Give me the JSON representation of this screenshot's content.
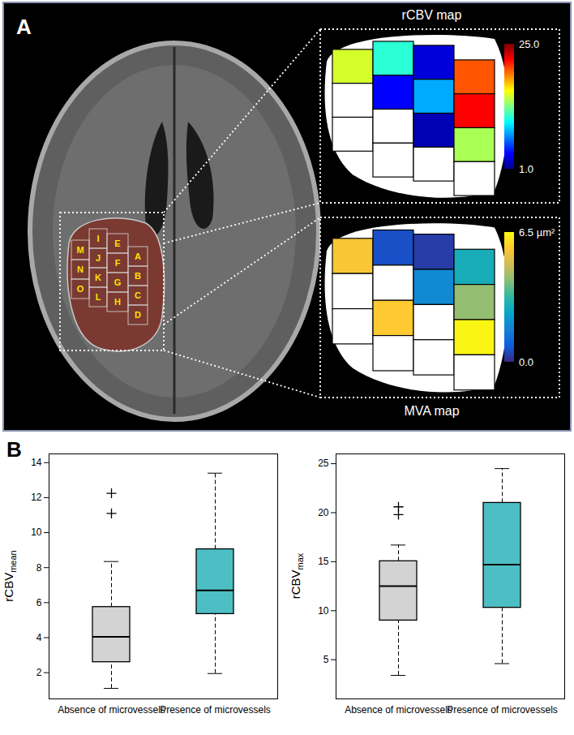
{
  "panel_a": {
    "label": "A",
    "rcbv_map": {
      "title": "rCBV map",
      "colorbar": {
        "range": [
          1,
          25
        ],
        "ticks": [
          {
            "value": 25,
            "label": "25.0"
          },
          {
            "value": 1,
            "label": "1.0"
          }
        ]
      }
    },
    "mva_map": {
      "title": "MVA map",
      "colorbar": {
        "range": [
          0,
          6.5
        ],
        "ticks": [
          {
            "value": 6.5,
            "label": "6.5 µm²"
          },
          {
            "value": 0,
            "label": "0.0"
          }
        ]
      }
    },
    "grid": [
      [
        {
          "label": "M",
          "rcbv": 15,
          "mva": 5.6
        },
        {
          "label": "N",
          "rcbv": null,
          "mva": null
        },
        {
          "label": "O",
          "rcbv": null,
          "mva": null
        }
      ],
      [
        {
          "label": "I",
          "rcbv": 11,
          "mva": 0.6
        },
        {
          "label": "J",
          "rcbv": 4,
          "mva": null
        },
        {
          "label": "K",
          "rcbv": null,
          "mva": 5.7
        },
        {
          "label": "L",
          "rcbv": null,
          "mva": null
        }
      ],
      [
        {
          "label": "E",
          "rcbv": 3,
          "mva": 0.3
        },
        {
          "label": "F",
          "rcbv": 8,
          "mva": 1.8
        },
        {
          "label": "G",
          "rcbv": 2,
          "mva": null
        },
        {
          "label": "H",
          "rcbv": null,
          "mva": null
        }
      ],
      [
        {
          "label": "A",
          "rcbv": 20,
          "mva": 2.8
        },
        {
          "label": "B",
          "rcbv": 22,
          "mva": 4.2
        },
        {
          "label": "C",
          "rcbv": 14,
          "mva": 6.4
        },
        {
          "label": "D",
          "rcbv": null,
          "mva": null
        }
      ]
    ]
  },
  "panel_b_label": "B",
  "chart_data": [
    {
      "type": "box",
      "ylabel": "rCBV",
      "ylabel_subscript": "mean",
      "categories": [
        "Absence of microvessels",
        "Presence of microvessels"
      ],
      "colors": [
        "#d3d3d3",
        "#4dbfc4"
      ],
      "stats": [
        {
          "min": 1.1,
          "q1": 2.6,
          "median": 4.05,
          "q3": 5.75,
          "max": 8.35,
          "outliers": [
            11.1,
            12.25
          ]
        },
        {
          "min": 1.95,
          "q1": 5.35,
          "median": 6.7,
          "q3": 9.05,
          "max": 13.4,
          "outliers": []
        }
      ],
      "ylim": [
        0.5,
        14.5
      ],
      "yticks": [
        2,
        4,
        6,
        8,
        10,
        12,
        14
      ]
    },
    {
      "type": "box",
      "ylabel": "rCBV",
      "ylabel_subscript": "max",
      "categories": [
        "Absence of microvessels",
        "Presence of microvessels"
      ],
      "colors": [
        "#d3d3d3",
        "#4dbfc4"
      ],
      "stats": [
        {
          "min": 3.4,
          "q1": 9.0,
          "median": 12.5,
          "q3": 15.05,
          "max": 16.7,
          "outliers": [
            19.8,
            20.6
          ]
        },
        {
          "min": 4.6,
          "q1": 10.3,
          "median": 14.7,
          "q3": 21.0,
          "max": 24.5,
          "outliers": []
        }
      ],
      "ylim": [
        1,
        26
      ],
      "yticks": [
        5,
        10,
        15,
        20,
        25
      ]
    }
  ]
}
